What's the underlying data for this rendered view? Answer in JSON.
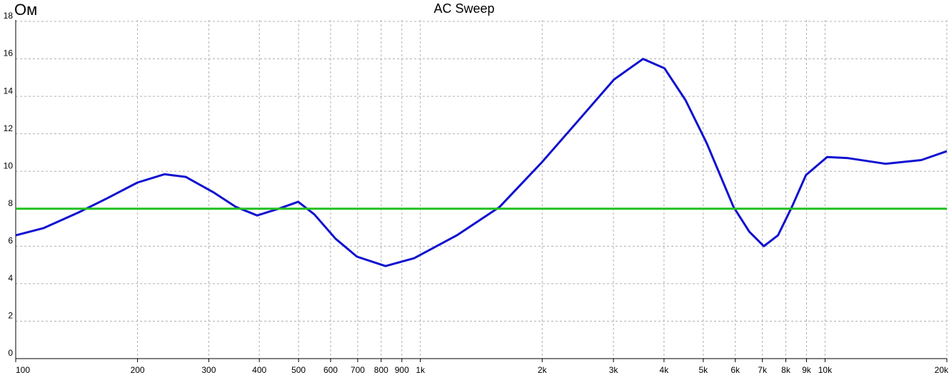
{
  "chart_data": {
    "type": "line",
    "title": "AC Sweep",
    "y_label": "Ом",
    "log_x": true,
    "grid": true,
    "xlim": [
      100,
      20000
    ],
    "ylim": [
      0,
      18
    ],
    "xticks": [
      100,
      200,
      300,
      400,
      500,
      600,
      700,
      800,
      900,
      {
        "value": 1000,
        "label": "1k"
      },
      {
        "value": 2000,
        "label": "2k"
      },
      {
        "value": 3000,
        "label": "3k"
      },
      {
        "value": 4000,
        "label": "4k"
      },
      {
        "value": 5000,
        "label": "5k"
      },
      {
        "value": 6000,
        "label": "6k"
      },
      {
        "value": 7000,
        "label": "7k"
      },
      {
        "value": 8000,
        "label": "8k"
      },
      {
        "value": 9000,
        "label": "9k"
      },
      {
        "value": 10000,
        "label": "10k"
      },
      {
        "value": 20000,
        "label": "20k"
      }
    ],
    "yticks": [
      0,
      2,
      4,
      6,
      8,
      10,
      12,
      14,
      16,
      18
    ],
    "series": [
      {
        "color": "#1010d0",
        "x": [
          100,
          117,
          143,
          168,
          200,
          233,
          263,
          309,
          350,
          395,
          446,
          499,
          547,
          617,
          697,
          820,
          965,
          1230,
          1570,
          2000,
          2455,
          3010,
          3550,
          4010,
          4520,
          5100,
          5940,
          6500,
          7060,
          7650,
          8280,
          8970,
          10120,
          11400,
          14100,
          17300,
          20000
        ],
        "values": [
          6.58,
          6.96,
          7.8,
          8.55,
          9.4,
          9.84,
          9.7,
          8.86,
          8.1,
          7.64,
          8.0,
          8.37,
          7.7,
          6.4,
          5.44,
          4.94,
          5.36,
          6.58,
          8.1,
          10.5,
          12.7,
          14.9,
          16.0,
          15.5,
          13.8,
          11.5,
          8.1,
          6.77,
          6.0,
          6.58,
          8.1,
          9.8,
          10.76,
          10.7,
          10.4,
          10.6,
          11.07
        ]
      },
      {
        "color": "#20c020",
        "x": [
          100,
          20000
        ],
        "values": [
          8,
          8
        ]
      }
    ]
  }
}
